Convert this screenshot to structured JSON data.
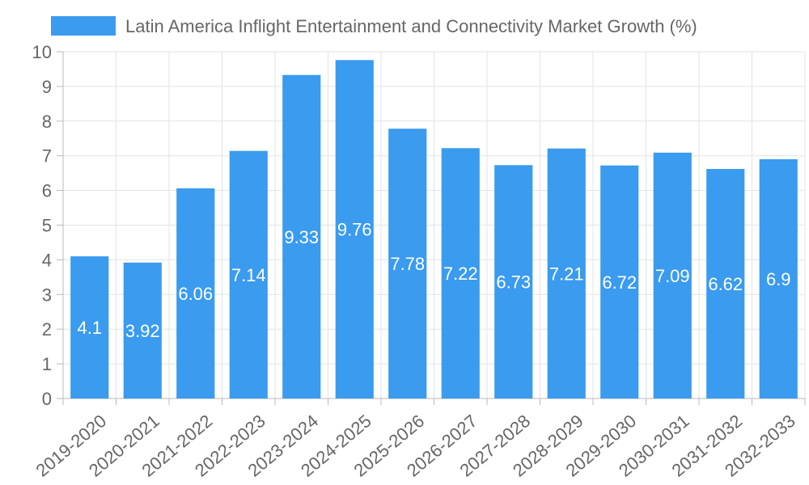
{
  "chart_data": {
    "type": "bar",
    "title": "",
    "xlabel": "",
    "ylabel": "",
    "ylim": [
      0,
      10
    ],
    "yticks": [
      0,
      1,
      2,
      3,
      4,
      5,
      6,
      7,
      8,
      9,
      10
    ],
    "grid": true,
    "legend": {
      "position": "top",
      "label": "Latin America Inflight Entertainment and Connectivity Market Growth (%)"
    },
    "categories": [
      "2019-2020",
      "2020-2021",
      "2021-2022",
      "2022-2023",
      "2023-2024",
      "2024-2025",
      "2025-2026",
      "2026-2027",
      "2027-2028",
      "2028-2029",
      "2029-2030",
      "2030-2031",
      "2031-2032",
      "2032-2033"
    ],
    "series": [
      {
        "name": "Latin America Inflight Entertainment and Connectivity Market Growth (%)",
        "values": [
          4.1,
          3.92,
          6.06,
          7.14,
          9.33,
          9.76,
          7.78,
          7.22,
          6.73,
          7.21,
          6.72,
          7.09,
          6.62,
          6.9
        ],
        "labels": [
          "4.1",
          "3.92",
          "6.06",
          "7.14",
          "9.33",
          "9.76",
          "7.78",
          "7.22",
          "6.73",
          "7.21",
          "6.72",
          "7.09",
          "6.62",
          "6.9"
        ]
      }
    ],
    "colors": {
      "bar": "#3a9bef",
      "data_label": "#ffffff",
      "text": "#666666",
      "grid": "#e3e3e3",
      "axis": "#b8b8b8"
    }
  }
}
